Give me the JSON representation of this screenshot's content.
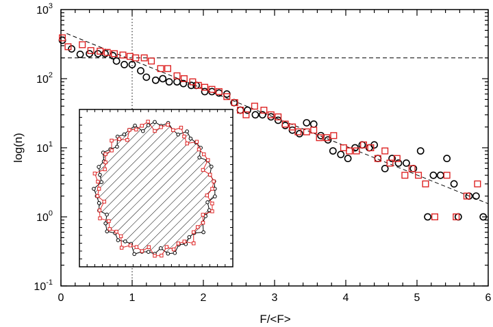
{
  "chart_data": {
    "type": "scatter",
    "xlabel": "F/<F>",
    "ylabel": "log(n)",
    "xlim": [
      0,
      6
    ],
    "ylim": [
      0.1,
      1000
    ],
    "yscale": "log",
    "grid": false,
    "x_ticks": [
      "0",
      "1",
      "2",
      "3",
      "4",
      "5",
      "6"
    ],
    "y_ticks": [
      {
        "base": "10",
        "exp": "-1"
      },
      {
        "base": "10",
        "exp": "0"
      },
      {
        "base": "10",
        "exp": "1"
      },
      {
        "base": "10",
        "exp": "2"
      },
      {
        "base": "10",
        "exp": "3"
      }
    ],
    "series": [
      {
        "marker": "circle",
        "color": "#000000",
        "points": [
          [
            0.02,
            360
          ],
          [
            0.15,
            270
          ],
          [
            0.27,
            225
          ],
          [
            0.4,
            230
          ],
          [
            0.52,
            230
          ],
          [
            0.62,
            230
          ],
          [
            0.73,
            215
          ],
          [
            0.78,
            180
          ],
          [
            0.89,
            160
          ],
          [
            1.0,
            160
          ],
          [
            1.12,
            130
          ],
          [
            1.2,
            105
          ],
          [
            1.33,
            95
          ],
          [
            1.43,
            100
          ],
          [
            1.52,
            90
          ],
          [
            1.63,
            90
          ],
          [
            1.72,
            85
          ],
          [
            1.83,
            80
          ],
          [
            1.9,
            80
          ],
          [
            2.02,
            65
          ],
          [
            2.12,
            65
          ],
          [
            2.22,
            62
          ],
          [
            2.33,
            60
          ],
          [
            2.43,
            45
          ],
          [
            2.52,
            35
          ],
          [
            2.62,
            35
          ],
          [
            2.73,
            30
          ],
          [
            2.83,
            30
          ],
          [
            2.95,
            28
          ],
          [
            3.05,
            25
          ],
          [
            3.15,
            21
          ],
          [
            3.25,
            18
          ],
          [
            3.35,
            16
          ],
          [
            3.45,
            23
          ],
          [
            3.55,
            22
          ],
          [
            3.65,
            15
          ],
          [
            3.75,
            13
          ],
          [
            3.82,
            9
          ],
          [
            3.93,
            8
          ],
          [
            4.03,
            7
          ],
          [
            4.13,
            10
          ],
          [
            4.23,
            11
          ],
          [
            4.33,
            10
          ],
          [
            4.4,
            11
          ],
          [
            4.45,
            7
          ],
          [
            4.55,
            5
          ],
          [
            4.65,
            7
          ],
          [
            4.74,
            6
          ],
          [
            4.85,
            6
          ],
          [
            4.95,
            5
          ],
          [
            5.05,
            9
          ],
          [
            5.15,
            1
          ],
          [
            5.23,
            4
          ],
          [
            5.33,
            4
          ],
          [
            5.42,
            7
          ],
          [
            5.52,
            3
          ],
          [
            5.58,
            1
          ],
          [
            5.73,
            2
          ],
          [
            5.83,
            2
          ],
          [
            5.93,
            1
          ]
        ]
      },
      {
        "marker": "square",
        "color": "#dd2222",
        "points": [
          [
            0.02,
            390
          ],
          [
            0.1,
            290
          ],
          [
            0.3,
            310
          ],
          [
            0.42,
            255
          ],
          [
            0.55,
            250
          ],
          [
            0.65,
            240
          ],
          [
            0.75,
            230
          ],
          [
            0.87,
            220
          ],
          [
            0.97,
            210
          ],
          [
            1.05,
            200
          ],
          [
            1.17,
            200
          ],
          [
            1.27,
            180
          ],
          [
            1.4,
            140
          ],
          [
            1.5,
            140
          ],
          [
            1.63,
            110
          ],
          [
            1.73,
            100
          ],
          [
            1.85,
            90
          ],
          [
            1.93,
            80
          ],
          [
            2.02,
            75
          ],
          [
            2.12,
            70
          ],
          [
            2.22,
            65
          ],
          [
            2.33,
            55
          ],
          [
            2.44,
            45
          ],
          [
            2.52,
            35
          ],
          [
            2.6,
            30
          ],
          [
            2.72,
            40
          ],
          [
            2.85,
            35
          ],
          [
            2.95,
            30
          ],
          [
            3.05,
            28
          ],
          [
            3.15,
            22
          ],
          [
            3.25,
            20
          ],
          [
            3.33,
            17
          ],
          [
            3.45,
            17
          ],
          [
            3.55,
            18
          ],
          [
            3.63,
            14
          ],
          [
            3.73,
            14
          ],
          [
            3.83,
            15
          ],
          [
            3.97,
            10
          ],
          [
            4.05,
            9
          ],
          [
            4.15,
            9
          ],
          [
            4.25,
            11
          ],
          [
            4.35,
            10
          ],
          [
            4.45,
            7
          ],
          [
            4.55,
            9
          ],
          [
            4.62,
            6
          ],
          [
            4.72,
            7
          ],
          [
            4.83,
            4
          ],
          [
            4.93,
            5
          ],
          [
            5.02,
            4
          ],
          [
            5.12,
            3
          ],
          [
            5.25,
            1
          ],
          [
            5.42,
            4
          ],
          [
            5.55,
            1
          ],
          [
            5.7,
            2
          ],
          [
            5.85,
            3
          ]
        ]
      }
    ],
    "fit_line": {
      "style": "dashed",
      "points": [
        [
          0.08,
          450
        ],
        [
          6,
          1.55
        ]
      ]
    },
    "reference_lines": [
      {
        "orientation": "horizontal",
        "value": 200,
        "style": "dashed"
      },
      {
        "orientation": "vertical",
        "value": 1,
        "style": "dotted"
      }
    ]
  },
  "inset": {
    "description_free": true,
    "fill_pattern": "diagonal-hatch",
    "outline_colors": [
      "#000000",
      "#dd2222"
    ]
  }
}
